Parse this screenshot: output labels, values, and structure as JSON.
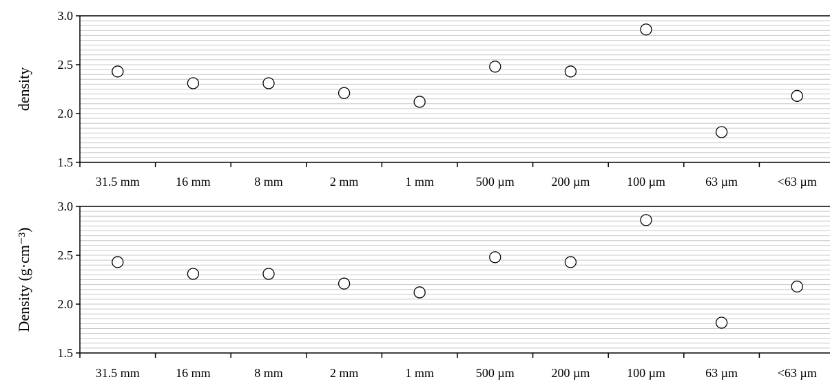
{
  "chart_data": [
    {
      "type": "scatter",
      "categories": [
        "31.5 mm",
        "16 mm",
        "8 mm",
        "2 mm",
        "1 mm",
        "500 µm",
        "200 µm",
        "100 µm",
        "63 µm",
        "<63 µm"
      ],
      "values": [
        2.43,
        2.31,
        2.31,
        2.21,
        2.12,
        2.48,
        2.43,
        2.86,
        1.81,
        2.18
      ],
      "xlabel": "",
      "ylabel": "density",
      "ylim": [
        1.5,
        3.0
      ],
      "yticks": [
        "1.5",
        "2.0",
        "2.5",
        "3.0"
      ],
      "grid": true,
      "marker": "open-circle"
    },
    {
      "type": "scatter",
      "categories": [
        "31.5 mm",
        "16 mm",
        "8 mm",
        "2 mm",
        "1 mm",
        "500 µm",
        "200 µm",
        "100 µm",
        "63 µm",
        "<63 µm"
      ],
      "values": [
        2.43,
        2.31,
        2.31,
        2.21,
        2.12,
        2.48,
        2.43,
        2.86,
        1.81,
        2.18
      ],
      "xlabel": "",
      "ylabel": "Density (g·cm⁻³)",
      "ylim": [
        1.5,
        3.0
      ],
      "yticks": [
        "1.5",
        "2.0",
        "2.5",
        "3.0"
      ],
      "grid": true,
      "marker": "open-circle"
    }
  ]
}
